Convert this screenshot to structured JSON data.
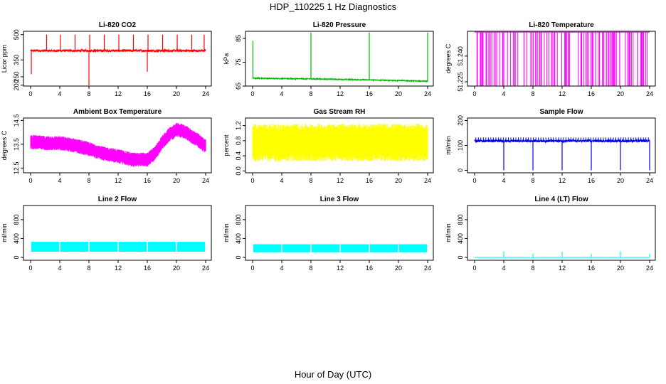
{
  "figure": {
    "title": "HDP_110225  1 Hz Diagnostics",
    "xlabel": "Hour of Day (UTC)"
  },
  "chart_data": [
    {
      "type": "line",
      "title": "Li-820 CO2",
      "ylabel": "Licor ppm",
      "xlim": [
        0,
        24
      ],
      "ylim": [
        195,
        520
      ],
      "xticks": [
        0,
        4,
        8,
        12,
        16,
        20,
        24
      ],
      "yticks": [
        200,
        250,
        350,
        500
      ],
      "ytick_labels": [
        "200",
        "250",
        "350",
        "500"
      ],
      "color": "#ff0000",
      "style": "noise",
      "baseline": 405,
      "noise": 7,
      "spikes": [
        {
          "x": 0.1,
          "y": 265
        },
        {
          "x": 2.2,
          "y": 500
        },
        {
          "x": 4.1,
          "y": 500
        },
        {
          "x": 6.1,
          "y": 500
        },
        {
          "x": 8.0,
          "y": 200
        },
        {
          "x": 8.1,
          "y": 500
        },
        {
          "x": 10.1,
          "y": 500
        },
        {
          "x": 12.1,
          "y": 500
        },
        {
          "x": 14.1,
          "y": 500
        },
        {
          "x": 16.0,
          "y": 280
        },
        {
          "x": 16.1,
          "y": 500
        },
        {
          "x": 18.1,
          "y": 500
        },
        {
          "x": 20.1,
          "y": 500
        },
        {
          "x": 22.1,
          "y": 500
        },
        {
          "x": 23.8,
          "y": 500
        }
      ]
    },
    {
      "type": "line",
      "title": "Li-820 Pressure",
      "ylabel": "kPa",
      "xlim": [
        0,
        24
      ],
      "ylim": [
        65,
        88
      ],
      "xticks": [
        0,
        4,
        8,
        12,
        16,
        20,
        24
      ],
      "yticks": [
        65,
        75,
        85
      ],
      "ytick_labels": [
        "65",
        "75",
        "85"
      ],
      "color": "#00bb00",
      "style": "trend",
      "trend": [
        [
          0,
          68.3
        ],
        [
          8,
          68.0
        ],
        [
          16,
          67.6
        ],
        [
          24,
          67.0
        ]
      ],
      "noise": 0.2,
      "spikes": [
        {
          "x": 0.05,
          "y": 84
        },
        {
          "x": 8.0,
          "y": 87.5
        },
        {
          "x": 16.0,
          "y": 87.5
        },
        {
          "x": 24.0,
          "y": 87.5
        }
      ]
    },
    {
      "type": "line",
      "title": "Li-820 Temperature",
      "ylabel": "degrees C",
      "xlim": [
        0,
        24
      ],
      "ylim": [
        51.2225,
        51.2545
      ],
      "xticks": [
        0,
        4,
        8,
        12,
        16,
        20,
        24
      ],
      "yticks": [
        51.225,
        51.24
      ],
      "ytick_labels": [
        "51.225",
        "51.240"
      ],
      "color": "#ff00ff",
      "style": "bistable",
      "high": 51.254,
      "low": 51.2225
    },
    {
      "type": "area",
      "title": "Ambient Box Temperature",
      "ylabel": "degrees C",
      "xlim": [
        0,
        24
      ],
      "ylim": [
        12.3,
        14.6
      ],
      "xticks": [
        0,
        4,
        8,
        12,
        16,
        20,
        24
      ],
      "yticks": [
        12.5,
        13.5,
        14.5
      ],
      "ytick_labels": [
        "12.5",
        "13.5",
        "14.5"
      ],
      "color": "#ff00ff",
      "style": "band",
      "halfwidth": 0.3,
      "trend": [
        [
          0,
          13.6
        ],
        [
          2,
          13.55
        ],
        [
          4,
          13.55
        ],
        [
          6,
          13.45
        ],
        [
          8,
          13.3
        ],
        [
          10,
          13.1
        ],
        [
          12,
          13.0
        ],
        [
          14,
          12.85
        ],
        [
          16,
          12.85
        ],
        [
          17,
          13.1
        ],
        [
          18,
          13.55
        ],
        [
          19,
          13.9
        ],
        [
          20,
          14.1
        ],
        [
          21,
          14.05
        ],
        [
          22,
          13.85
        ],
        [
          23,
          13.65
        ],
        [
          24,
          13.4
        ]
      ]
    },
    {
      "type": "area",
      "title": "Gas Stream RH",
      "ylabel": "percent",
      "xlim": [
        0,
        24
      ],
      "ylim": [
        -0.05,
        1.4
      ],
      "xticks": [
        0,
        4,
        8,
        12,
        16,
        20,
        24
      ],
      "yticks": [
        0.0,
        0.4,
        0.8,
        1.2
      ],
      "ytick_labels": [
        "0.0",
        "0.4",
        "0.8",
        "1.2"
      ],
      "color": "#ffff00",
      "style": "band",
      "halfwidth": 0.5,
      "trend": [
        [
          0,
          0.75
        ],
        [
          24,
          0.75
        ]
      ]
    },
    {
      "type": "line",
      "title": "Sample Flow",
      "ylabel": "ml/min",
      "xlim": [
        0,
        24
      ],
      "ylim": [
        -10,
        210
      ],
      "xticks": [
        0,
        4,
        8,
        12,
        16,
        20,
        24
      ],
      "yticks": [
        0,
        100,
        200
      ],
      "ytick_labels": [
        "0",
        "100",
        "200"
      ],
      "color": "#0000ff",
      "style": "flow",
      "baseline": 118,
      "noise": 5,
      "spikes": [
        {
          "x": 4.0,
          "y": 0
        },
        {
          "x": 8.0,
          "y": 0
        },
        {
          "x": 12.0,
          "y": 0
        },
        {
          "x": 16.0,
          "y": 0
        },
        {
          "x": 20.0,
          "y": 0
        },
        {
          "x": 24.0,
          "y": 0
        }
      ]
    },
    {
      "type": "area",
      "title": "Line 2 Flow",
      "ylabel": "ml/min",
      "xlim": [
        0,
        24
      ],
      "ylim": [
        -60,
        1100
      ],
      "xticks": [
        0,
        4,
        8,
        12,
        16,
        20,
        24
      ],
      "yticks": [
        0,
        400,
        800
      ],
      "ytick_labels": [
        "0",
        "400",
        "800"
      ],
      "color": "#00ffff",
      "style": "blocks",
      "bottom": 120,
      "top": 330,
      "gaps": [
        4,
        8,
        12,
        16,
        20
      ]
    },
    {
      "type": "area",
      "title": "Line 3 Flow",
      "ylabel": "ml/min",
      "xlim": [
        0,
        24
      ],
      "ylim": [
        -60,
        1100
      ],
      "xticks": [
        0,
        4,
        8,
        12,
        16,
        20,
        24
      ],
      "yticks": [
        0,
        400,
        800
      ],
      "ytick_labels": [
        "0",
        "400",
        "800"
      ],
      "color": "#00ffff",
      "style": "blocks",
      "bottom": 110,
      "top": 280,
      "gaps": [
        4,
        8,
        12,
        16,
        20
      ]
    },
    {
      "type": "line",
      "title": "Line 4 (LT) Flow",
      "ylabel": "ml/min",
      "xlim": [
        0,
        24
      ],
      "ylim": [
        -60,
        1100
      ],
      "xticks": [
        0,
        4,
        8,
        12,
        16,
        20,
        24
      ],
      "yticks": [
        0,
        400,
        800
      ],
      "ytick_labels": [
        "0",
        "400",
        "800"
      ],
      "color": "#00ffff",
      "style": "flow",
      "baseline": 0,
      "noise": 2,
      "spikes": [
        {
          "x": 4.0,
          "y": 130
        },
        {
          "x": 8.0,
          "y": 80
        },
        {
          "x": 12.0,
          "y": 120
        },
        {
          "x": 16.0,
          "y": 80
        },
        {
          "x": 20.0,
          "y": 130
        },
        {
          "x": 24.0,
          "y": 80
        }
      ]
    }
  ]
}
